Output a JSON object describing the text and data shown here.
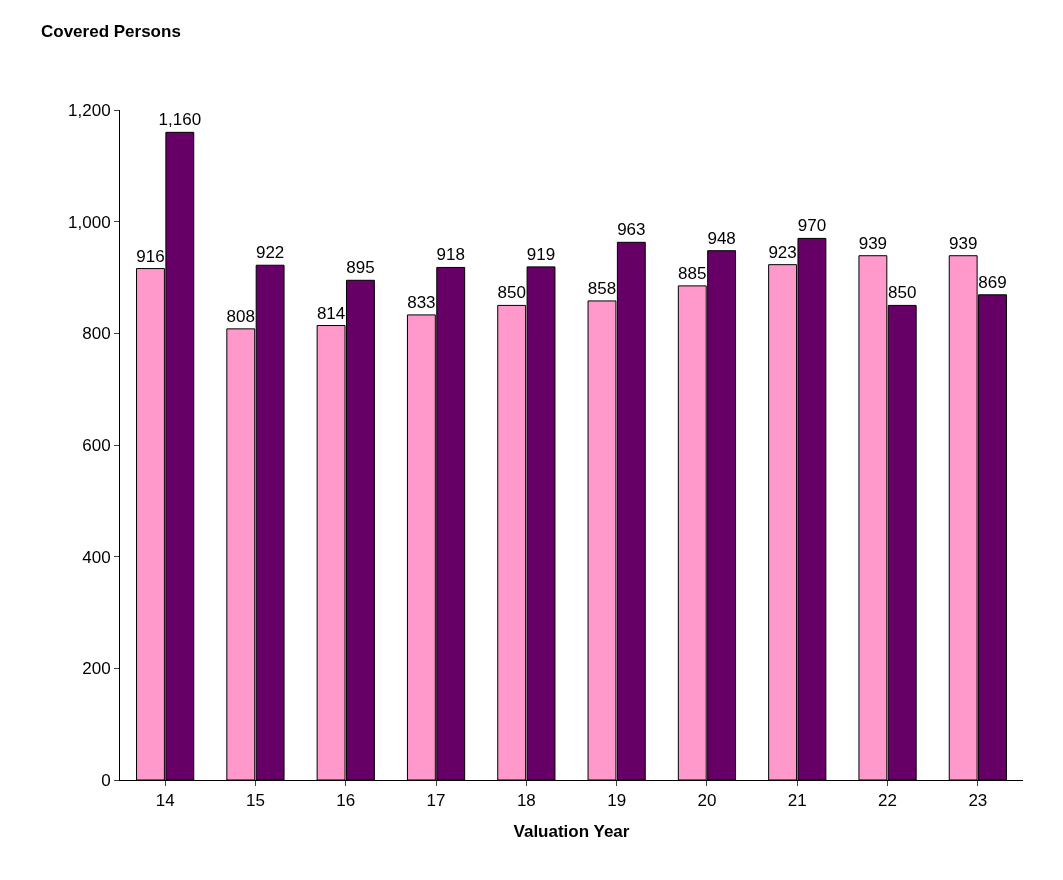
{
  "chart_data": {
    "type": "bar",
    "ylabel": "Covered Persons",
    "xlabel": "Valuation Year",
    "categories": [
      "14",
      "15",
      "16",
      "17",
      "18",
      "19",
      "20",
      "21",
      "22",
      "23"
    ],
    "series": [
      {
        "color": "#ff99cc",
        "values": [
          916,
          808,
          814,
          833,
          850,
          858,
          885,
          923,
          939,
          939
        ],
        "value_labels": [
          "916",
          "808",
          "814",
          "833",
          "850",
          "858",
          "885",
          "923",
          "939",
          "939"
        ]
      },
      {
        "color": "#660066",
        "values": [
          1160,
          922,
          895,
          918,
          919,
          963,
          948,
          970,
          850,
          869
        ],
        "value_labels": [
          "1,160",
          "922",
          "895",
          "918",
          "919",
          "963",
          "948",
          "970",
          "850",
          "869"
        ]
      }
    ],
    "ylim": [
      0,
      1200
    ],
    "yticks": [
      0,
      200,
      400,
      600,
      800,
      {
        "value": 1000,
        "label": "1,000"
      },
      {
        "value": 1200,
        "label": "1,200"
      }
    ],
    "legend": false
  }
}
